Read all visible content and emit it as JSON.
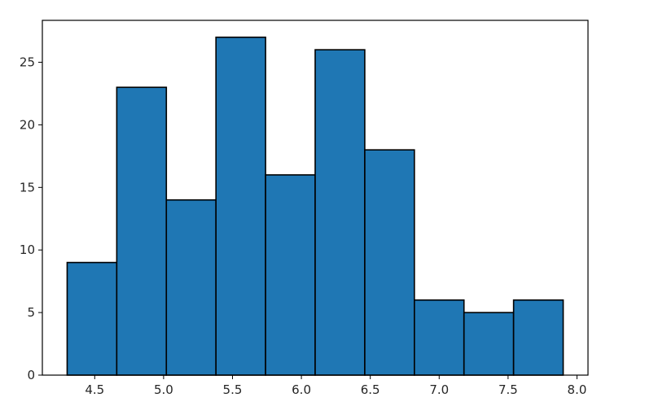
{
  "chart_data": {
    "type": "bar",
    "title": "",
    "xlabel": "",
    "ylabel": "",
    "bin_edges": [
      4.3,
      4.66,
      5.02,
      5.38,
      5.74,
      6.1,
      6.46,
      6.82,
      7.18,
      7.54,
      7.9
    ],
    "values": [
      9,
      23,
      14,
      27,
      16,
      26,
      18,
      6,
      5,
      6
    ],
    "xlim": [
      4.12,
      8.08
    ],
    "ylim": [
      0,
      28.35
    ],
    "xticks": [
      4.5,
      5.0,
      5.5,
      6.0,
      6.5,
      7.0,
      7.5,
      8.0
    ],
    "xtick_labels": [
      "4.5",
      "5.0",
      "5.5",
      "6.0",
      "6.5",
      "7.0",
      "7.5",
      "8.0"
    ],
    "yticks": [
      0,
      5,
      10,
      15,
      20,
      25
    ],
    "ytick_labels": [
      "0",
      "5",
      "10",
      "15",
      "20",
      "25"
    ],
    "grid": false,
    "bar_color": "#1f77b4",
    "edge_color": "#000000"
  }
}
